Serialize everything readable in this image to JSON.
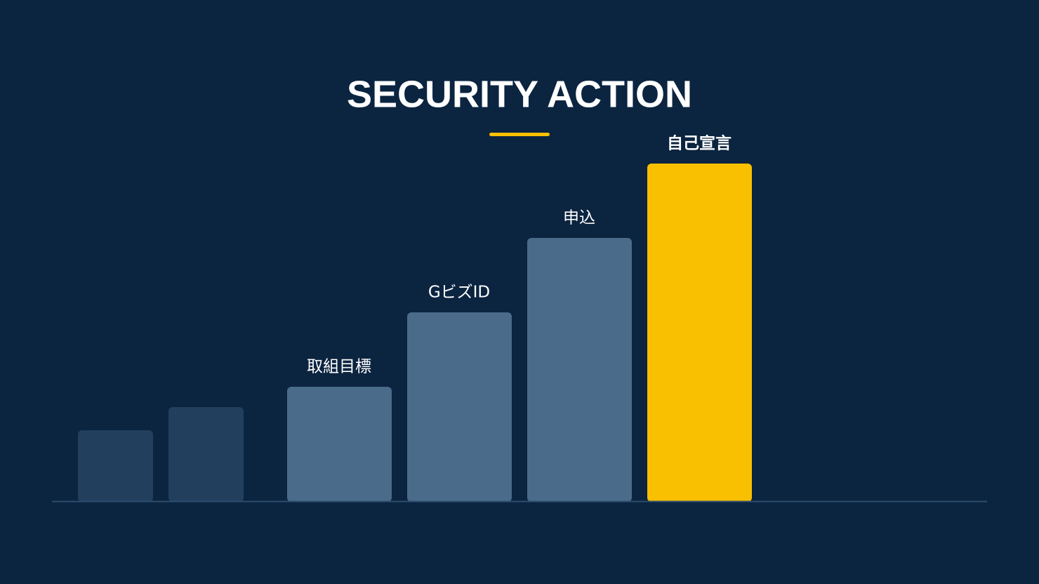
{
  "title": "SECURITY ACTION",
  "steps": [
    "取組目標",
    "GビズID",
    "申込",
    "自己宣言"
  ]
}
